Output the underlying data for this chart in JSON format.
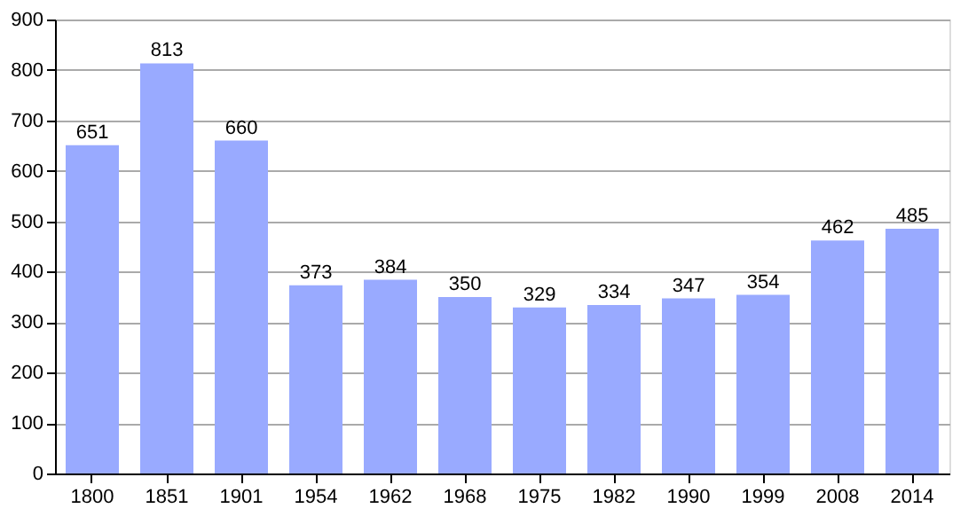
{
  "chart_data": {
    "type": "bar",
    "categories": [
      "1800",
      "1851",
      "1901",
      "1954",
      "1962",
      "1968",
      "1975",
      "1982",
      "1990",
      "1999",
      "2008",
      "2014"
    ],
    "values": [
      651,
      813,
      660,
      373,
      384,
      350,
      329,
      334,
      347,
      354,
      462,
      485
    ],
    "color": "#99aaff",
    "ylim": [
      0,
      900
    ],
    "yticks": [
      0,
      100,
      200,
      300,
      400,
      500,
      600,
      700,
      800,
      900
    ],
    "grid": "y",
    "data_labels": true
  }
}
